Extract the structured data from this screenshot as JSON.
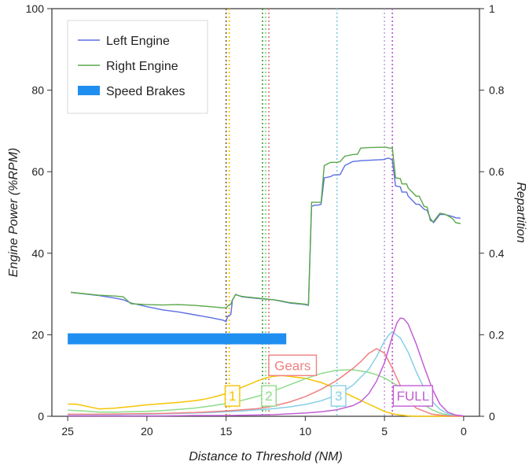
{
  "chart_data": {
    "type": "line",
    "xlabel": "Distance to Threshold (NM)",
    "ylabel": "Engine Power (%RPM)",
    "y2label": "Repartition",
    "xlim": [
      26,
      -1
    ],
    "ylim": [
      0,
      100
    ],
    "y2lim": [
      0,
      1
    ],
    "x_ticks": [
      "25",
      "20",
      "15",
      "10",
      "5",
      "0"
    ],
    "y_ticks": [
      "0",
      "20",
      "40",
      "60",
      "80",
      "100"
    ],
    "y2_ticks": [
      "0",
      "0.2",
      "0.4",
      "0.6",
      "0.8",
      "1"
    ],
    "grid": false,
    "legend": {
      "position": "top-left",
      "entries": [
        {
          "label": "Left Engine",
          "color": "#5b6ee1",
          "kind": "line"
        },
        {
          "label": "Right Engine",
          "color": "#5aa84a",
          "kind": "line"
        },
        {
          "label": "Speed Brakes",
          "color": "#1f8ef1",
          "kind": "bar"
        }
      ]
    },
    "series": [
      {
        "name": "Left Engine",
        "color": "#5b6ee1",
        "x": [
          24.8,
          23,
          22,
          21.5,
          21,
          20,
          19,
          18,
          17,
          16,
          15.2,
          15.0,
          14.9,
          14.7,
          14.6,
          14.4,
          14.0,
          13,
          12,
          11.5,
          11,
          10,
          9.8,
          9.6,
          9.4,
          9.2,
          9.0,
          8.8,
          8.4,
          8.2,
          8.0,
          7.8,
          7.5,
          7.0,
          6.7,
          6.5,
          6.0,
          5.0,
          4.9,
          4.7,
          4.5,
          4.3,
          4.0,
          3.9,
          3.6,
          3.5,
          3.0,
          2.8,
          2.5,
          2.3,
          2.1,
          1.9,
          1.7,
          1.5,
          1.2,
          1.0,
          0.7,
          0.5,
          0.2
        ],
        "y": [
          30.4,
          29.6,
          29.0,
          28.6,
          27.8,
          26.9,
          26.1,
          25.6,
          24.9,
          24.2,
          23.6,
          23.2,
          24.5,
          25.0,
          28.5,
          29.9,
          29.3,
          28.9,
          28.6,
          28.2,
          27.8,
          27.4,
          27.2,
          51.5,
          51.8,
          51.8,
          52.0,
          58.5,
          58.8,
          59.2,
          59.2,
          59.3,
          61.5,
          62.5,
          62.6,
          62.7,
          62.8,
          63.0,
          63.2,
          63.3,
          62.8,
          56.5,
          56.3,
          55.0,
          55.0,
          54.0,
          52.0,
          52.0,
          50.8,
          50.5,
          48.5,
          47.5,
          48.5,
          49.5,
          49.5,
          49.3,
          49.0,
          48.7,
          48.6
        ]
      },
      {
        "name": "Right Engine",
        "color": "#5aa84a",
        "x": [
          24.8,
          23,
          22,
          21.5,
          21,
          20,
          19,
          18,
          17,
          16,
          15.2,
          15.0,
          14.9,
          14.7,
          14.6,
          14.4,
          14.0,
          13,
          12,
          11.5,
          11,
          10,
          9.8,
          9.6,
          9.4,
          9.2,
          9.0,
          8.8,
          8.4,
          8.2,
          8.0,
          7.8,
          7.5,
          7.0,
          6.7,
          6.5,
          6.0,
          5.0,
          4.9,
          4.7,
          4.5,
          4.3,
          4.0,
          3.9,
          3.6,
          3.5,
          3.0,
          2.8,
          2.5,
          2.3,
          2.1,
          1.9,
          1.7,
          1.5,
          1.2,
          1.0,
          0.7,
          0.5,
          0.2
        ],
        "y": [
          30.4,
          29.7,
          29.5,
          29.3,
          27.6,
          27.4,
          27.3,
          27.4,
          27.2,
          26.9,
          26.6,
          26.6,
          27.0,
          27.5,
          28.6,
          29.8,
          29.4,
          29.0,
          28.6,
          28.3,
          27.9,
          27.5,
          27.3,
          52.5,
          52.5,
          52.5,
          52.5,
          61.5,
          62.3,
          62.3,
          62.3,
          62.5,
          63.8,
          64.2,
          64.3,
          65.8,
          65.9,
          66.0,
          66.0,
          65.8,
          65.8,
          58.5,
          58.3,
          57.0,
          57.0,
          56.0,
          54.0,
          54.0,
          51.5,
          51.3,
          48.0,
          47.8,
          48.8,
          49.8,
          49.6,
          49.2,
          48.5,
          47.5,
          47.3
        ]
      },
      {
        "name": "Speed Brakes",
        "color": "#1f8ef1",
        "kind": "range",
        "from": 25.0,
        "to": 11.2,
        "level": 19.0
      }
    ],
    "repartitions": [
      {
        "label": "1",
        "color": "#f5c400",
        "line_x": 14.8,
        "label_x": 14.6,
        "label_y": 0.05,
        "x": [
          25,
          24.5,
          24,
          23,
          22,
          21,
          20,
          19,
          18,
          17,
          16.5,
          16,
          15.5,
          15,
          14.5,
          14,
          13.5,
          13,
          12.5,
          12,
          11.5,
          11,
          10,
          9,
          8,
          7,
          6,
          5.5,
          5,
          4.5,
          4,
          3.5,
          3,
          2,
          1,
          0
        ],
        "y": [
          0.03,
          0.03,
          0.026,
          0.018,
          0.02,
          0.024,
          0.028,
          0.031,
          0.034,
          0.038,
          0.041,
          0.045,
          0.05,
          0.056,
          0.063,
          0.071,
          0.079,
          0.087,
          0.094,
          0.098,
          0.1,
          0.098,
          0.093,
          0.083,
          0.067,
          0.048,
          0.03,
          0.021,
          0.012,
          0.006,
          0.003,
          0.001,
          0,
          0,
          0,
          0
        ]
      },
      {
        "label": "2",
        "color": "#8fdc8b",
        "line_x": 12.5,
        "label_x": 12.3,
        "label_y": 0.05,
        "x": [
          25,
          24,
          23,
          22,
          21,
          20,
          19,
          18,
          17,
          16,
          15,
          14,
          13,
          12,
          11,
          10,
          9,
          8,
          7,
          6,
          5.5,
          5,
          4.5,
          4,
          3.5,
          3,
          2.5,
          2,
          1.5,
          1,
          0.5,
          0
        ],
        "y": [
          0.015,
          0.013,
          0.01,
          0.01,
          0.011,
          0.012,
          0.014,
          0.017,
          0.02,
          0.025,
          0.031,
          0.039,
          0.049,
          0.062,
          0.077,
          0.092,
          0.105,
          0.113,
          0.114,
          0.108,
          0.102,
          0.094,
          0.083,
          0.071,
          0.057,
          0.042,
          0.028,
          0.016,
          0.008,
          0.003,
          0.001,
          0
        ]
      },
      {
        "label": "3",
        "color": "#86cfe6",
        "line_x": 8.0,
        "label_x": 7.9,
        "label_y": 0.05,
        "x": [
          25,
          24,
          23,
          22,
          21,
          20,
          19,
          18,
          17,
          16,
          15,
          14,
          13,
          12,
          11,
          10,
          9,
          8,
          7,
          6,
          5.5,
          5,
          4.7,
          4.5,
          4.0,
          3.5,
          3.0,
          2.5,
          2.0,
          1.5,
          1,
          0.5,
          0
        ],
        "y": [
          0.004,
          0.004,
          0.004,
          0.004,
          0.005,
          0.005,
          0.006,
          0.007,
          0.008,
          0.009,
          0.011,
          0.013,
          0.016,
          0.019,
          0.023,
          0.029,
          0.038,
          0.052,
          0.076,
          0.115,
          0.146,
          0.184,
          0.201,
          0.207,
          0.192,
          0.157,
          0.11,
          0.069,
          0.037,
          0.017,
          0.006,
          0.002,
          0
        ]
      },
      {
        "label": "Gears",
        "color": "#f08080",
        "line_x": 12.3,
        "label_x": 10.8,
        "label_y": 0.125,
        "x": [
          25,
          23,
          21,
          19,
          17,
          16,
          15,
          14,
          13,
          12,
          11,
          10,
          9,
          8,
          7,
          6.5,
          6,
          5.5,
          5,
          4.5,
          4,
          3.5,
          3,
          2,
          1,
          0
        ],
        "y": [
          0.005,
          0.005,
          0.006,
          0.007,
          0.009,
          0.011,
          0.013,
          0.016,
          0.019,
          0.025,
          0.035,
          0.048,
          0.066,
          0.088,
          0.117,
          0.134,
          0.154,
          0.166,
          0.155,
          0.118,
          0.075,
          0.041,
          0.02,
          0.005,
          0.001,
          0
        ]
      },
      {
        "label": "FULL",
        "color": "#c25ed6",
        "line_x": 4.5,
        "label_x": 3.2,
        "label_y": 0.05,
        "x": [
          25,
          23,
          21,
          19,
          17,
          15,
          13,
          12,
          11,
          10,
          9,
          8,
          7,
          6.5,
          6,
          5.5,
          5,
          4.5,
          4.2,
          4,
          3.8,
          3.5,
          3,
          2.5,
          2,
          1.5,
          1,
          0.5,
          0
        ],
        "y": [
          0.001,
          0.001,
          0.001,
          0.001,
          0.002,
          0.002,
          0.003,
          0.004,
          0.006,
          0.008,
          0.011,
          0.016,
          0.026,
          0.036,
          0.055,
          0.086,
          0.131,
          0.196,
          0.23,
          0.241,
          0.24,
          0.226,
          0.178,
          0.122,
          0.069,
          0.03,
          0.01,
          0.003,
          0.001
        ]
      }
    ],
    "extra_vlines": [
      {
        "x": 15.0,
        "color": "#7a5a2a"
      },
      {
        "x": 12.7,
        "color": "#3c9c3c"
      },
      {
        "x": 5.0,
        "color": "#c8a0dc"
      }
    ]
  }
}
